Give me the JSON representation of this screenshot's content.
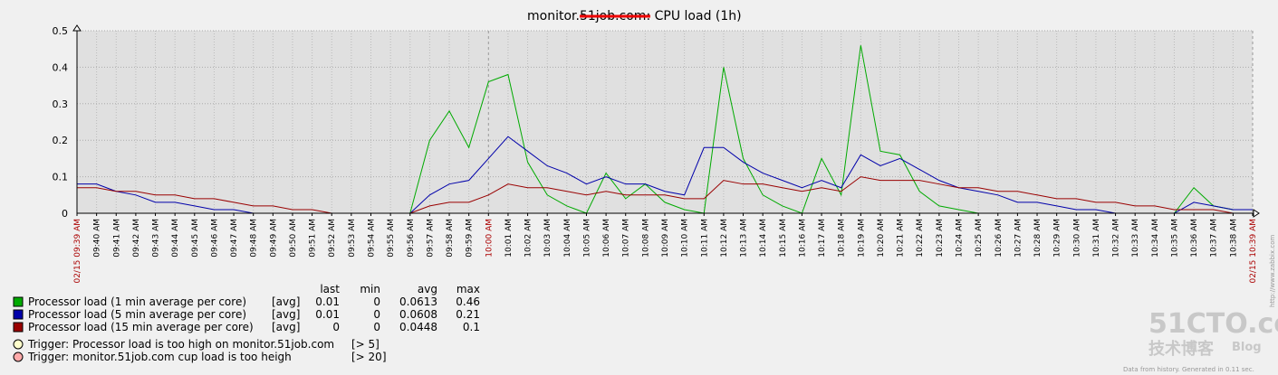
{
  "chart_data": {
    "type": "line",
    "title": "monitor.51job.com: CPU load (1h)",
    "categories": [
      "02/15 09:39 AM",
      "09:40 AM",
      "09:41 AM",
      "09:42 AM",
      "09:43 AM",
      "09:44 AM",
      "09:45 AM",
      "09:46 AM",
      "09:47 AM",
      "09:48 AM",
      "09:49 AM",
      "09:50 AM",
      "09:51 AM",
      "09:52 AM",
      "09:53 AM",
      "09:54 AM",
      "09:55 AM",
      "09:56 AM",
      "09:57 AM",
      "09:58 AM",
      "09:59 AM",
      "10:00 AM",
      "10:01 AM",
      "10:02 AM",
      "10:03 AM",
      "10:04 AM",
      "10:05 AM",
      "10:06 AM",
      "10:07 AM",
      "10:08 AM",
      "10:09 AM",
      "10:10 AM",
      "10:11 AM",
      "10:12 AM",
      "10:13 AM",
      "10:14 AM",
      "10:15 AM",
      "10:16 AM",
      "10:17 AM",
      "10:18 AM",
      "10:19 AM",
      "10:20 AM",
      "10:21 AM",
      "10:22 AM",
      "10:23 AM",
      "10:24 AM",
      "10:25 AM",
      "10:26 AM",
      "10:27 AM",
      "10:28 AM",
      "10:29 AM",
      "10:30 AM",
      "10:31 AM",
      "10:32 AM",
      "10:33 AM",
      "10:34 AM",
      "10:35 AM",
      "10:36 AM",
      "10:37 AM",
      "10:38 AM",
      "02/15 10:39 AM"
    ],
    "highlighted_categories": [
      0,
      21,
      60
    ],
    "highlight_color": "#aa0000",
    "ylim": [
      0,
      0.5
    ],
    "yticks": [
      0,
      0.1,
      0.2,
      0.3,
      0.4,
      0.5
    ],
    "grid": true,
    "legend_columns": [
      "last",
      "min",
      "avg",
      "max"
    ],
    "series": [
      {
        "name": "Processor load (1 min average per core)",
        "function": "[avg]",
        "color": "#00aa00",
        "stats": [
          0.01,
          0,
          0.0613,
          0.46
        ],
        "values": [
          0,
          0,
          0,
          0,
          0,
          0,
          0,
          0,
          0,
          0,
          0,
          0,
          0,
          0,
          0,
          0,
          0,
          0,
          0.2,
          0.28,
          0.18,
          0.36,
          0.38,
          0.14,
          0.05,
          0.02,
          0,
          0.11,
          0.04,
          0.08,
          0.03,
          0.01,
          0,
          0.4,
          0.15,
          0.05,
          0.02,
          0,
          0.15,
          0.05,
          0.46,
          0.17,
          0.16,
          0.06,
          0.02,
          0.01,
          0,
          0,
          0,
          0,
          0,
          0,
          0,
          0,
          0,
          0,
          0,
          0.07,
          0.02,
          0.01,
          0.01
        ]
      },
      {
        "name": "Processor load (5 min average per core)",
        "function": "[avg]",
        "color": "#0000aa",
        "stats": [
          0.01,
          0,
          0.0608,
          0.21
        ],
        "values": [
          0.08,
          0.08,
          0.06,
          0.05,
          0.03,
          0.03,
          0.02,
          0.01,
          0.01,
          0,
          0,
          0,
          0,
          0,
          0,
          0,
          0,
          0,
          0.05,
          0.08,
          0.09,
          0.15,
          0.21,
          0.17,
          0.13,
          0.11,
          0.08,
          0.1,
          0.08,
          0.08,
          0.06,
          0.05,
          0.18,
          0.18,
          0.14,
          0.11,
          0.09,
          0.07,
          0.09,
          0.07,
          0.16,
          0.13,
          0.15,
          0.12,
          0.09,
          0.07,
          0.06,
          0.05,
          0.03,
          0.03,
          0.02,
          0.01,
          0.01,
          0,
          0,
          0,
          0,
          0.03,
          0.02,
          0.01,
          0.01
        ]
      },
      {
        "name": "Processor load (15 min average per core)",
        "function": "[avg]",
        "color": "#990000",
        "stats": [
          0,
          0,
          0.0448,
          0.1
        ],
        "values": [
          0.07,
          0.07,
          0.06,
          0.06,
          0.05,
          0.05,
          0.04,
          0.04,
          0.03,
          0.02,
          0.02,
          0.01,
          0.01,
          0,
          0,
          0,
          0,
          0,
          0.02,
          0.03,
          0.03,
          0.05,
          0.08,
          0.07,
          0.07,
          0.06,
          0.05,
          0.06,
          0.05,
          0.05,
          0.05,
          0.04,
          0.04,
          0.09,
          0.08,
          0.08,
          0.07,
          0.06,
          0.07,
          0.06,
          0.1,
          0.09,
          0.09,
          0.09,
          0.08,
          0.07,
          0.07,
          0.06,
          0.06,
          0.05,
          0.04,
          0.04,
          0.03,
          0.03,
          0.02,
          0.02,
          0.01,
          0.01,
          0.01,
          0,
          0
        ]
      }
    ],
    "triggers": [
      {
        "name": "Trigger: Processor load is too high on monitor.51job.com",
        "condition": "[> 5]",
        "color": "#ffffcc"
      },
      {
        "name": "Trigger: monitor.51job.com cup load is too heigh",
        "condition": "[> 20]",
        "color": "#ffaaaa"
      }
    ],
    "side_text": "http://www.zabbix.com",
    "footer": "Data from history. Generated in 0.11 sec.",
    "watermark": {
      "logo": "51CTO.com",
      "subtitle": "技术博客",
      "blog": "Blog"
    }
  }
}
